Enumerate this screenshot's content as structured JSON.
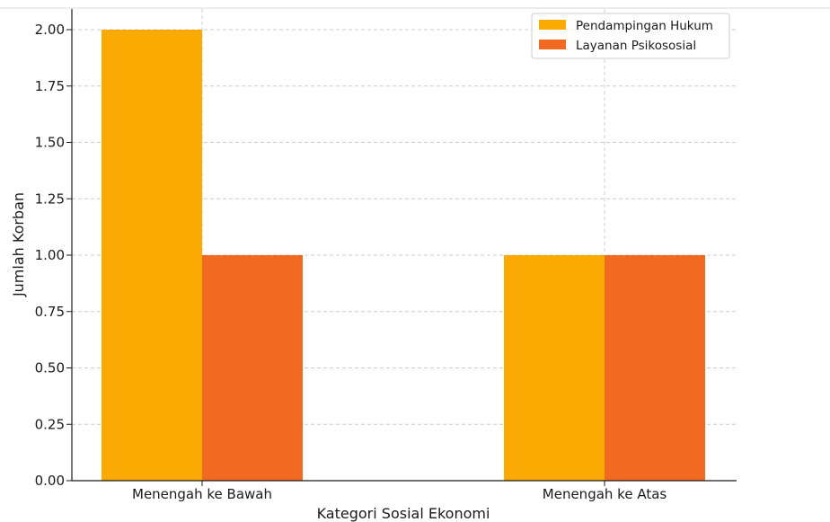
{
  "chart_data": {
    "type": "bar",
    "title": "",
    "xlabel": "Kategori Sosial Ekonomi",
    "ylabel": "Jumlah Korban",
    "categories": [
      "Menengah ke Bawah",
      "Menengah ke Atas"
    ],
    "series": [
      {
        "name": "Pendampingan Hukum",
        "values": [
          2,
          1
        ],
        "color": "#FBAA03"
      },
      {
        "name": "Layanan Psikososial",
        "values": [
          1,
          1
        ],
        "color": "#F26A21"
      }
    ],
    "ylim": [
      0,
      2.1
    ],
    "yticks": [
      "0.00",
      "0.25",
      "0.50",
      "0.75",
      "1.00",
      "1.25",
      "1.50",
      "1.75",
      "2.00"
    ],
    "grid": true,
    "legend_position": "top-right"
  }
}
